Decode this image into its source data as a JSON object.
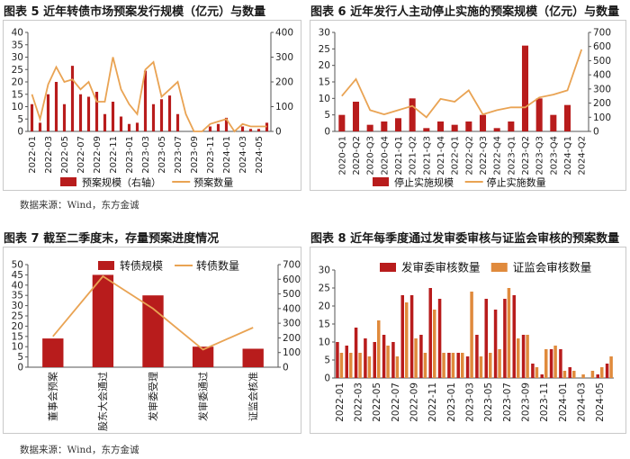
{
  "colors": {
    "bar": "#b81c1c",
    "line": "#e9a353",
    "bar2": "#e08a3c",
    "axis": "#555555"
  },
  "source_note": "数据来源：Wind，东方金诚",
  "chart_data": [
    {
      "id": "fig5",
      "type": "bar+line",
      "title": "图表 5  近年转债市场预案发行规模（亿元）与数量",
      "x": [
        "2022-01",
        "2022-02",
        "2022-03",
        "2022-04",
        "2022-05",
        "2022-06",
        "2022-07",
        "2022-08",
        "2022-09",
        "2022-10",
        "2022-11",
        "2022-12",
        "2023-01",
        "2023-02",
        "2023-03",
        "2023-04",
        "2023-05",
        "2023-06",
        "2023-07",
        "2023-08",
        "2023-09",
        "2023-10",
        "2023-11",
        "2023-12",
        "2024-01",
        "2024-02",
        "2024-03",
        "2024-04",
        "2024-05",
        "2024-06"
      ],
      "x_tick_labels": [
        "2022-01",
        "2022-03",
        "2022-05",
        "2022-07",
        "2022-09",
        "2022-11",
        "2023-01",
        "2023-03",
        "2023-05",
        "2023-07",
        "2023-09",
        "2023-11",
        "2024-01",
        "2024-03",
        "2024-05"
      ],
      "series": [
        {
          "name": "预案规模（右轴）",
          "kind": "bar",
          "axis": "right",
          "values": [
            110,
            35,
            150,
            200,
            110,
            265,
            150,
            140,
            160,
            70,
            120,
            60,
            30,
            35,
            245,
            110,
            130,
            145,
            70,
            0,
            0,
            0,
            20,
            30,
            55,
            0,
            20,
            10,
            10,
            35
          ]
        },
        {
          "name": "预案数量",
          "kind": "line",
          "axis": "left",
          "values": [
            15,
            5,
            19,
            26,
            20,
            21,
            17,
            20,
            12,
            12,
            30,
            17,
            11,
            7,
            25,
            28,
            14,
            17,
            20,
            7,
            0,
            0,
            3,
            4,
            5,
            0,
            3,
            2,
            2,
            2
          ]
        }
      ],
      "y_left": {
        "min": 0,
        "max": 40,
        "ticks": [
          0,
          5,
          10,
          15,
          20,
          25,
          30,
          35,
          40
        ]
      },
      "y_right": {
        "min": 0,
        "max": 400,
        "ticks": [
          0,
          100,
          200,
          300,
          400
        ]
      },
      "legend": "bottom"
    },
    {
      "id": "fig6",
      "type": "bar+line",
      "title": "图表 6  近年发行人主动停止实施的预案规模（亿元）与数量",
      "x": [
        "2020-Q1",
        "2020-Q2",
        "2020-Q3",
        "2020-Q4",
        "2021-Q1",
        "2021-Q2",
        "2021-Q3",
        "2021-Q4",
        "2022-Q1",
        "2022-Q2",
        "2022-Q3",
        "2022-Q4",
        "2023-Q1",
        "2023-Q2",
        "2023-Q3",
        "2023-Q4",
        "2024-Q1",
        "2024-Q2"
      ],
      "x_tick_labels": [
        "2020-Q1",
        "2020-Q2",
        "2020-Q3",
        "2020-Q4",
        "2021-Q1",
        "2021-Q2",
        "2021-Q3",
        "2021-Q4",
        "2022-Q1",
        "2022-Q2",
        "2022-Q3",
        "2022-Q4",
        "2023-Q1",
        "2023-Q2",
        "2023-Q3",
        "2023-Q4",
        "2024-Q1",
        "2024-Q2"
      ],
      "series": [
        {
          "name": "停止实施规模",
          "kind": "bar",
          "axis": "left",
          "values": [
            5,
            9,
            2,
            3,
            4,
            10,
            1,
            3,
            2,
            3,
            5,
            1,
            3,
            26,
            10,
            5,
            8,
            0
          ]
        },
        {
          "name": "停止实施数量",
          "kind": "line",
          "axis": "right",
          "values": [
            250,
            370,
            150,
            120,
            150,
            180,
            100,
            230,
            210,
            290,
            120,
            150,
            170,
            170,
            240,
            260,
            290,
            580
          ]
        }
      ],
      "y_left": {
        "min": 0,
        "max": 30,
        "ticks": [
          0,
          5,
          10,
          15,
          20,
          25,
          30
        ]
      },
      "y_right": {
        "min": 0,
        "max": 700,
        "ticks": [
          0,
          100,
          200,
          300,
          400,
          500,
          600,
          700
        ]
      },
      "legend": "bottom"
    },
    {
      "id": "fig7",
      "type": "bar+line",
      "title": "图表 7  截至二季度末，存量预案进度情况",
      "x": [
        "董事会预案",
        "股东大会通过",
        "发审委受理",
        "发审委通过",
        "证监会核准"
      ],
      "x_tick_labels": [
        "董事会预案",
        "股东大会通过",
        "发审委受理",
        "发审委通过",
        "证监会核准"
      ],
      "series": [
        {
          "name": "转债规模",
          "kind": "bar",
          "axis": "left",
          "values": [
            14,
            45,
            35,
            10,
            9
          ]
        },
        {
          "name": "转债数量",
          "kind": "line",
          "axis": "right",
          "values": [
            210,
            620,
            400,
            120,
            270
          ]
        }
      ],
      "y_left": {
        "min": 0,
        "max": 50,
        "ticks": [
          0,
          5,
          10,
          15,
          20,
          25,
          30,
          35,
          40,
          45,
          50
        ]
      },
      "y_right": {
        "min": 0,
        "max": 700,
        "ticks": [
          0,
          100,
          200,
          300,
          400,
          500,
          600,
          700
        ]
      },
      "legend": "top"
    },
    {
      "id": "fig8",
      "type": "grouped-bar",
      "title": "图表 8  近年每季度通过发审委审核与证监会审核的预案数量",
      "x": [
        "2022-01",
        "2022-02",
        "2022-03",
        "2022-04",
        "2022-05",
        "2022-06",
        "2022-07",
        "2022-08",
        "2022-09",
        "2022-10",
        "2022-11",
        "2022-12",
        "2023-01",
        "2023-02",
        "2023-03",
        "2023-04",
        "2023-05",
        "2023-06",
        "2023-07",
        "2023-08",
        "2023-09",
        "2023-10",
        "2023-11",
        "2023-12",
        "2024-01",
        "2024-02",
        "2024-03",
        "2024-04",
        "2024-05",
        "2024-06"
      ],
      "x_tick_labels": [
        "2022-01",
        "2022-03",
        "2022-05",
        "2022-07",
        "2022-09",
        "2022-11",
        "2023-01",
        "2023-03",
        "2023-05",
        "2023-07",
        "2023-09",
        "2023-11",
        "2024-01",
        "2024-03",
        "2024-05"
      ],
      "series": [
        {
          "name": "发审委审核数量",
          "kind": "bar",
          "values": [
            10,
            9,
            14,
            11,
            10,
            12,
            10,
            23,
            23,
            12,
            25,
            22,
            7,
            7,
            6,
            12,
            22,
            19,
            22,
            23,
            12,
            4,
            1,
            8,
            8,
            3,
            0,
            0,
            1,
            4
          ]
        },
        {
          "name": "证监会审核数量",
          "kind": "bar",
          "values": [
            7,
            7,
            7,
            6,
            16,
            9,
            6,
            21,
            11,
            7,
            19,
            7,
            7,
            7,
            24,
            6,
            7,
            8,
            25,
            11,
            12,
            3,
            8,
            9,
            2,
            2,
            1,
            2,
            3,
            6
          ]
        }
      ],
      "y_left": {
        "min": 0,
        "max": 30,
        "ticks": [
          0,
          5,
          10,
          15,
          20,
          25,
          30
        ]
      },
      "legend": "top"
    }
  ]
}
